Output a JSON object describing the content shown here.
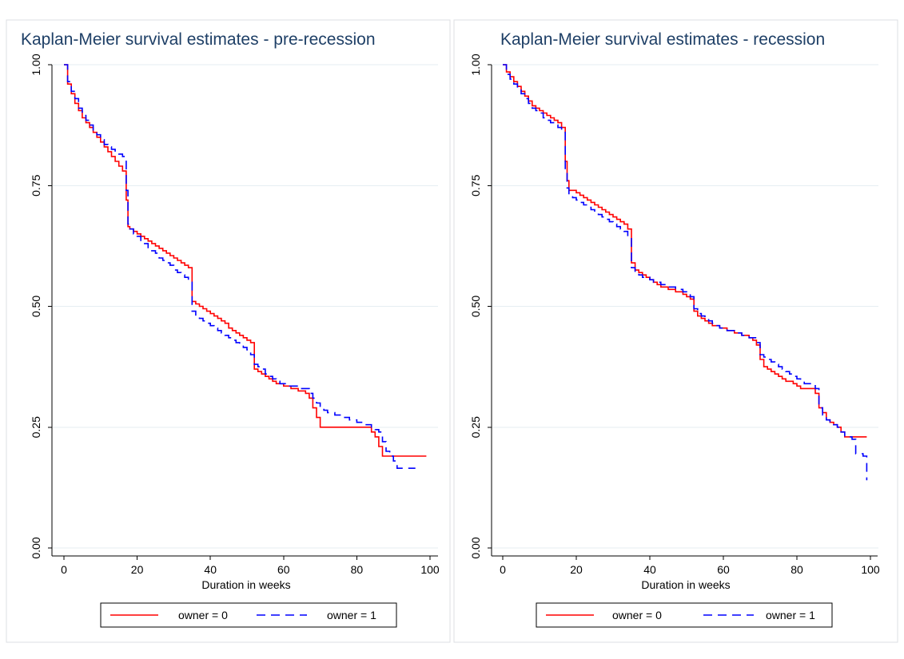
{
  "colors": {
    "owner0": "#ff0000",
    "owner1": "#0000ff",
    "title": "#1e3f66"
  },
  "chart_data": [
    {
      "type": "line",
      "title": "Kaplan-Meier survival estimates - pre-recession",
      "xlabel": "Duration in weeks",
      "ylabel": "",
      "xlim": [
        0,
        100
      ],
      "ylim": [
        0,
        1
      ],
      "xticks": [
        "0",
        "20",
        "40",
        "60",
        "80",
        "100"
      ],
      "yticks": [
        "0.00",
        "0.25",
        "0.50",
        "0.75",
        "1.00"
      ],
      "grid": true,
      "legend_position": "bottom",
      "series": [
        {
          "name": "owner = 0",
          "style": "solid",
          "x": [
            0,
            1,
            2,
            3,
            4,
            5,
            6,
            7,
            8,
            9,
            10,
            11,
            12,
            13,
            14,
            15,
            16,
            17,
            17.5,
            18,
            19,
            20,
            21,
            22,
            23,
            24,
            25,
            26,
            27,
            28,
            29,
            30,
            31,
            32,
            33,
            34,
            35,
            36,
            37,
            38,
            39,
            40,
            41,
            42,
            43,
            44,
            45,
            46,
            47,
            48,
            49,
            50,
            51,
            52,
            53,
            54,
            55,
            56,
            57,
            58,
            59,
            60,
            61,
            62,
            63,
            64,
            65,
            66,
            67,
            68,
            69,
            70,
            71,
            80,
            84,
            85,
            86,
            87,
            99
          ],
          "y": [
            1.0,
            0.96,
            0.94,
            0.92,
            0.905,
            0.89,
            0.88,
            0.87,
            0.86,
            0.85,
            0.84,
            0.83,
            0.82,
            0.81,
            0.8,
            0.79,
            0.78,
            0.72,
            0.665,
            0.66,
            0.655,
            0.65,
            0.645,
            0.64,
            0.635,
            0.63,
            0.625,
            0.62,
            0.615,
            0.61,
            0.605,
            0.6,
            0.595,
            0.59,
            0.585,
            0.58,
            0.51,
            0.505,
            0.5,
            0.495,
            0.49,
            0.485,
            0.48,
            0.475,
            0.47,
            0.465,
            0.455,
            0.45,
            0.445,
            0.44,
            0.435,
            0.43,
            0.425,
            0.37,
            0.365,
            0.36,
            0.355,
            0.35,
            0.345,
            0.34,
            0.34,
            0.335,
            0.335,
            0.33,
            0.33,
            0.325,
            0.325,
            0.32,
            0.31,
            0.29,
            0.27,
            0.25,
            0.25,
            0.25,
            0.24,
            0.23,
            0.21,
            0.19,
            0.19
          ]
        },
        {
          "name": "owner = 1",
          "style": "dashed",
          "x": [
            0,
            1,
            2,
            3,
            4,
            5,
            6,
            7,
            8,
            9,
            10,
            11,
            12,
            13,
            14,
            15,
            16,
            17,
            17.5,
            18,
            19,
            20,
            21,
            22,
            23,
            24,
            25,
            26,
            27,
            28,
            29,
            30,
            31,
            32,
            33,
            34,
            35,
            36,
            37,
            38,
            39,
            40,
            41,
            42,
            43,
            44,
            45,
            46,
            47,
            48,
            49,
            50,
            51,
            52,
            53,
            54,
            55,
            56,
            57,
            58,
            59,
            60,
            61,
            62,
            63,
            64,
            65,
            66,
            67,
            68,
            69,
            70,
            71,
            72,
            74,
            76,
            78,
            80,
            82,
            84,
            85,
            86,
            87,
            88,
            89,
            90,
            91,
            92,
            93,
            96
          ],
          "y": [
            1.0,
            0.965,
            0.945,
            0.93,
            0.91,
            0.895,
            0.885,
            0.875,
            0.865,
            0.855,
            0.845,
            0.835,
            0.83,
            0.825,
            0.82,
            0.815,
            0.81,
            0.74,
            0.67,
            0.66,
            0.65,
            0.645,
            0.635,
            0.63,
            0.62,
            0.615,
            0.61,
            0.6,
            0.595,
            0.59,
            0.585,
            0.575,
            0.57,
            0.565,
            0.56,
            0.55,
            0.49,
            0.48,
            0.475,
            0.47,
            0.465,
            0.46,
            0.455,
            0.45,
            0.445,
            0.44,
            0.435,
            0.43,
            0.425,
            0.42,
            0.415,
            0.41,
            0.4,
            0.38,
            0.375,
            0.37,
            0.36,
            0.355,
            0.35,
            0.345,
            0.34,
            0.34,
            0.335,
            0.335,
            0.335,
            0.33,
            0.33,
            0.33,
            0.32,
            0.31,
            0.3,
            0.29,
            0.285,
            0.28,
            0.275,
            0.27,
            0.265,
            0.26,
            0.255,
            0.25,
            0.245,
            0.24,
            0.22,
            0.2,
            0.19,
            0.18,
            0.165,
            0.165,
            0.165,
            0.165
          ]
        }
      ]
    },
    {
      "type": "line",
      "title": "Kaplan-Meier survival estimates - recession",
      "xlabel": "Duration in weeks",
      "ylabel": "",
      "xlim": [
        0,
        100
      ],
      "ylim": [
        0,
        1
      ],
      "xticks": [
        "0",
        "20",
        "40",
        "60",
        "80",
        "100"
      ],
      "yticks": [
        "0.00",
        "0.25",
        "0.50",
        "0.75",
        "1.00"
      ],
      "grid": true,
      "legend_position": "bottom",
      "series": [
        {
          "name": "owner = 0",
          "style": "solid",
          "x": [
            0,
            1,
            2,
            3,
            4,
            5,
            6,
            7,
            8,
            9,
            10,
            11,
            12,
            13,
            14,
            15,
            16,
            17,
            17.5,
            18,
            19,
            20,
            21,
            22,
            23,
            24,
            25,
            26,
            27,
            28,
            29,
            30,
            31,
            32,
            33,
            34,
            35,
            36,
            37,
            38,
            39,
            40,
            41,
            42,
            43,
            44,
            45,
            46,
            47,
            48,
            49,
            50,
            51,
            52,
            53,
            54,
            55,
            56,
            57,
            58,
            59,
            60,
            61,
            62,
            63,
            64,
            65,
            66,
            67,
            68,
            69,
            70,
            71,
            72,
            73,
            74,
            75,
            76,
            77,
            78,
            79,
            80,
            81,
            82,
            83,
            84,
            85,
            86,
            87,
            88,
            89,
            90,
            91,
            92,
            93,
            99
          ],
          "y": [
            1.0,
            0.985,
            0.975,
            0.965,
            0.955,
            0.945,
            0.935,
            0.925,
            0.915,
            0.91,
            0.905,
            0.9,
            0.895,
            0.89,
            0.885,
            0.88,
            0.87,
            0.8,
            0.76,
            0.74,
            0.74,
            0.735,
            0.73,
            0.725,
            0.72,
            0.715,
            0.71,
            0.705,
            0.7,
            0.695,
            0.69,
            0.685,
            0.68,
            0.675,
            0.67,
            0.66,
            0.59,
            0.575,
            0.57,
            0.565,
            0.56,
            0.555,
            0.55,
            0.545,
            0.54,
            0.54,
            0.535,
            0.535,
            0.53,
            0.53,
            0.525,
            0.52,
            0.515,
            0.49,
            0.48,
            0.475,
            0.47,
            0.465,
            0.46,
            0.46,
            0.455,
            0.455,
            0.45,
            0.45,
            0.445,
            0.445,
            0.44,
            0.44,
            0.435,
            0.43,
            0.42,
            0.39,
            0.375,
            0.37,
            0.365,
            0.36,
            0.355,
            0.35,
            0.345,
            0.345,
            0.34,
            0.335,
            0.33,
            0.33,
            0.33,
            0.33,
            0.32,
            0.29,
            0.28,
            0.265,
            0.26,
            0.255,
            0.25,
            0.24,
            0.23,
            0.23
          ]
        },
        {
          "name": "owner = 1",
          "style": "dashed",
          "x": [
            0,
            1,
            2,
            3,
            4,
            5,
            6,
            7,
            8,
            9,
            10,
            11,
            12,
            13,
            14,
            15,
            16,
            17,
            17.5,
            18,
            19,
            20,
            21,
            22,
            23,
            24,
            25,
            26,
            27,
            28,
            29,
            30,
            31,
            32,
            33,
            34,
            35,
            36,
            37,
            38,
            39,
            40,
            41,
            42,
            43,
            44,
            45,
            46,
            47,
            48,
            49,
            50,
            51,
            52,
            53,
            54,
            55,
            56,
            57,
            58,
            59,
            60,
            61,
            62,
            63,
            64,
            65,
            66,
            67,
            68,
            69,
            70,
            71,
            72,
            73,
            74,
            75,
            76,
            77,
            78,
            79,
            80,
            81,
            82,
            83,
            84,
            85,
            86,
            87,
            88,
            89,
            90,
            91,
            92,
            93,
            94,
            95,
            96,
            97,
            98,
            99
          ],
          "y": [
            1.0,
            0.98,
            0.97,
            0.96,
            0.95,
            0.94,
            0.93,
            0.92,
            0.91,
            0.905,
            0.9,
            0.89,
            0.885,
            0.88,
            0.875,
            0.87,
            0.86,
            0.78,
            0.745,
            0.73,
            0.725,
            0.72,
            0.715,
            0.71,
            0.705,
            0.7,
            0.695,
            0.69,
            0.685,
            0.68,
            0.675,
            0.67,
            0.665,
            0.66,
            0.655,
            0.645,
            0.58,
            0.57,
            0.565,
            0.56,
            0.56,
            0.555,
            0.55,
            0.55,
            0.545,
            0.545,
            0.54,
            0.54,
            0.535,
            0.535,
            0.53,
            0.525,
            0.52,
            0.495,
            0.485,
            0.48,
            0.475,
            0.47,
            0.465,
            0.46,
            0.455,
            0.455,
            0.45,
            0.45,
            0.445,
            0.445,
            0.44,
            0.44,
            0.435,
            0.435,
            0.425,
            0.4,
            0.395,
            0.39,
            0.385,
            0.38,
            0.375,
            0.37,
            0.365,
            0.36,
            0.355,
            0.35,
            0.345,
            0.34,
            0.34,
            0.34,
            0.33,
            0.29,
            0.275,
            0.265,
            0.26,
            0.255,
            0.25,
            0.24,
            0.23,
            0.23,
            0.225,
            0.195,
            0.195,
            0.19,
            0.14
          ]
        }
      ]
    }
  ]
}
